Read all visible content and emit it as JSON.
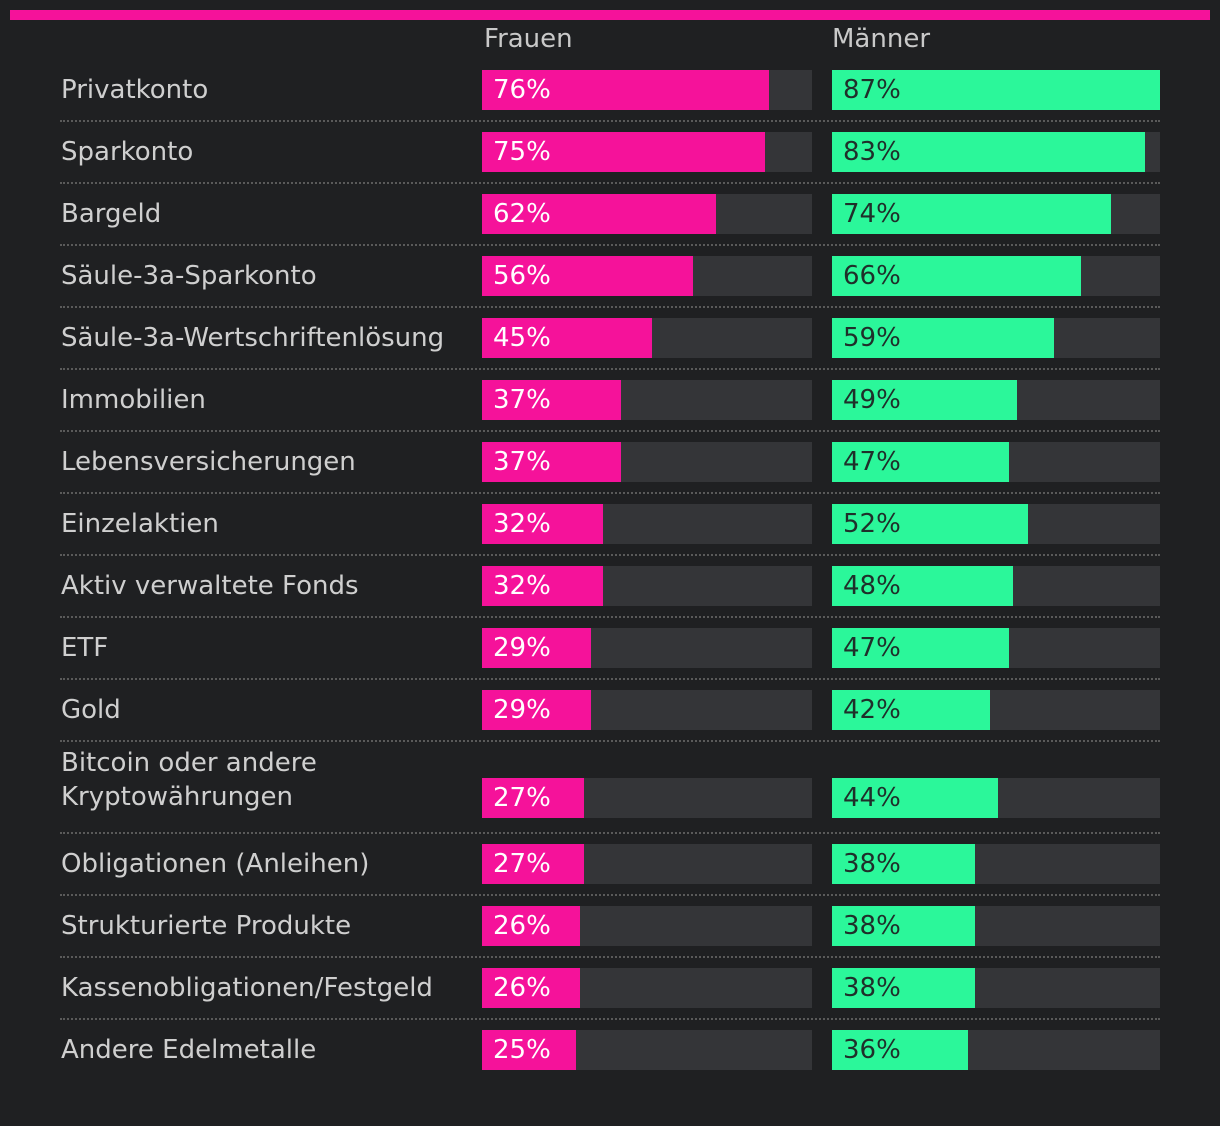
{
  "colors": {
    "frauen": "#f5129a",
    "maenner": "#2bf79a",
    "accent_bar": "#f5129a"
  },
  "chart_data": {
    "type": "bar",
    "orientation": "horizontal",
    "xlim": [
      0,
      100
    ],
    "series_labels": {
      "frauen": "Frauen",
      "maenner": "Männer"
    },
    "categories": [
      "Privatkonto",
      "Sparkonto",
      "Bargeld",
      "Säule-3a-Sparkonto",
      "Säule-3a-Wertschriftenlösung",
      "Immobilien",
      "Lebensversicherungen",
      "Einzelaktien",
      "Aktiv verwaltete Fonds",
      "ETF",
      "Gold",
      "Bitcoin oder andere Kryptowährungen",
      "Obligationen (Anleihen)",
      "Strukturierte Produkte",
      "Kassenobligationen/Festgeld",
      "Andere Edelmetalle"
    ],
    "series": [
      {
        "name": "Frauen",
        "values": [
          76,
          75,
          62,
          56,
          45,
          37,
          37,
          32,
          32,
          29,
          29,
          27,
          27,
          26,
          26,
          25
        ]
      },
      {
        "name": "Männer",
        "values": [
          87,
          83,
          74,
          66,
          59,
          49,
          47,
          52,
          48,
          47,
          42,
          44,
          38,
          38,
          38,
          36
        ]
      }
    ],
    "value_labels": {
      "frauen": [
        "76%",
        "75%",
        "62%",
        "56%",
        "45%",
        "37%",
        "37%",
        "32%",
        "32%",
        "29%",
        "29%",
        "27%",
        "27%",
        "26%",
        "26%",
        "25%"
      ],
      "maenner": [
        "87%",
        "83%",
        "74%",
        "66%",
        "59%",
        "49%",
        "47%",
        "52%",
        "48%",
        "47%",
        "42%",
        "44%",
        "38%",
        "38%",
        "38%",
        "36%"
      ]
    }
  }
}
